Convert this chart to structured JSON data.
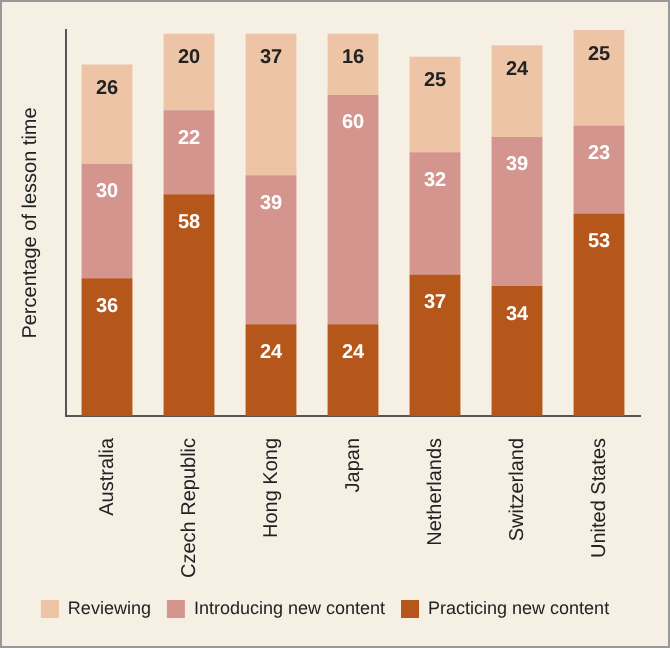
{
  "chart_data": {
    "type": "bar",
    "stacked": true,
    "ylabel": "Percentage of lesson time",
    "categories": [
      "Australia",
      "Czech Republic",
      "Hong Kong",
      "Japan",
      "Netherlands",
      "Switzerland",
      "United States"
    ],
    "series": [
      {
        "name": "Practicing new content",
        "color": "#b5561a",
        "values": [
          36,
          58,
          24,
          24,
          37,
          34,
          53
        ]
      },
      {
        "name": "Introducing new content",
        "color": "#d4958f",
        "values": [
          30,
          22,
          39,
          60,
          32,
          39,
          23
        ]
      },
      {
        "name": "Reviewing",
        "color": "#edc4a6",
        "values": [
          26,
          20,
          37,
          16,
          25,
          24,
          25
        ]
      }
    ],
    "data_labels": true,
    "legend": "bottom",
    "grid": false,
    "tick_labels": "x"
  }
}
